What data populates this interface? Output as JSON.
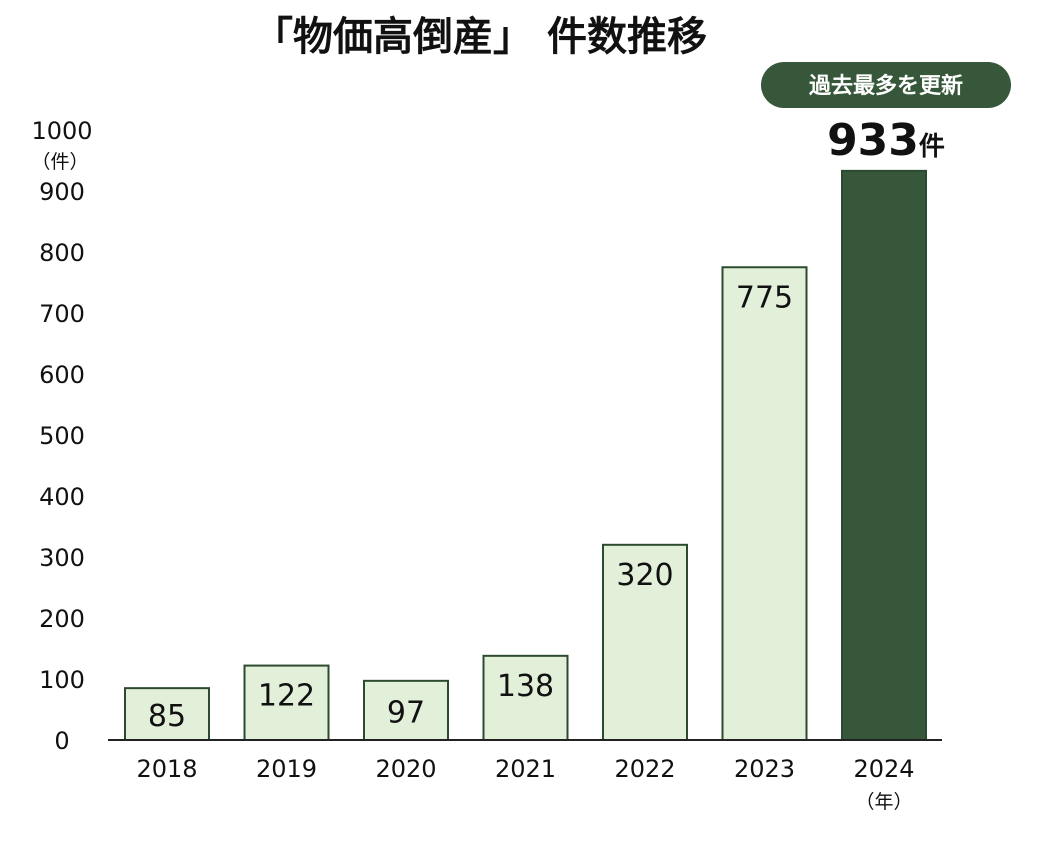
{
  "colors": {
    "bar_fill": "#e2efd9",
    "bar_stroke": "#2c4a2f",
    "highlight_fill": "#36573a",
    "axis": "#222222",
    "text": "#111111",
    "badge_fill": "#36573a",
    "badge_text": "#ffffff"
  },
  "chart_data": {
    "type": "bar",
    "title": "「物価高倒産」 件数推移",
    "categories": [
      "2018",
      "2019",
      "2020",
      "2021",
      "2022",
      "2023",
      "2024"
    ],
    "values": [
      85,
      122,
      97,
      138,
      320,
      775,
      933
    ],
    "value_labels": [
      "85",
      "122",
      "97",
      "138",
      "320",
      "775",
      "933"
    ],
    "y_unit": "（件）",
    "x_unit": "（年）",
    "ylim": [
      0,
      1000
    ],
    "yticks": [
      0,
      100,
      200,
      300,
      400,
      500,
      600,
      700,
      800,
      900,
      1000
    ],
    "grid": false,
    "legend": "none",
    "highlight": {
      "category": "2024",
      "value_label": "933",
      "unit_label": "件",
      "badge_text": "過去最多を更新"
    }
  }
}
